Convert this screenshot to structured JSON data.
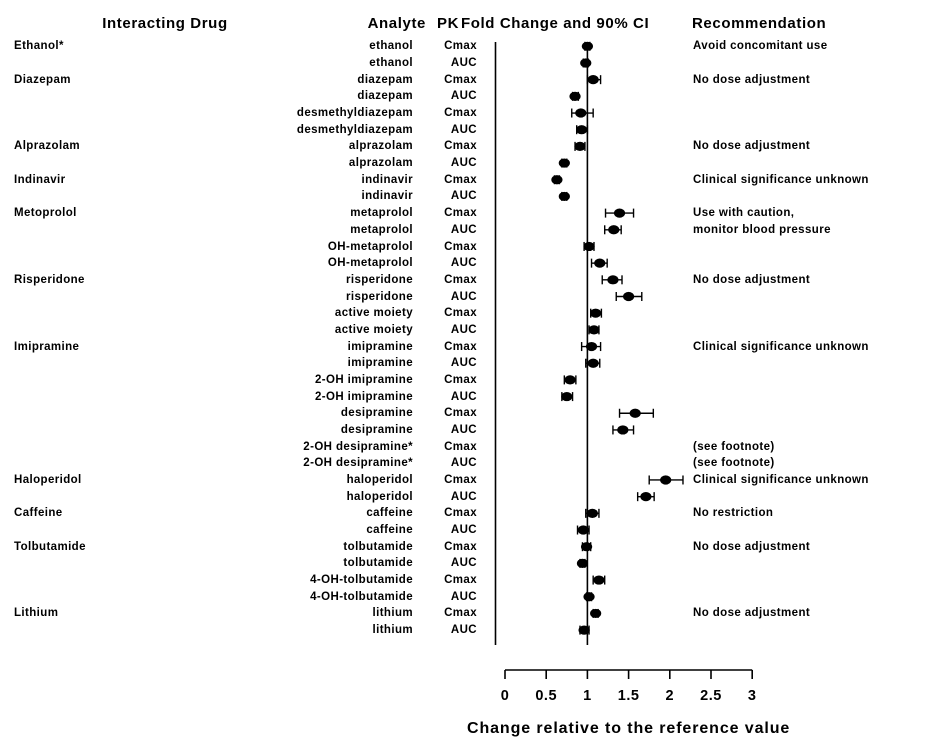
{
  "headers": {
    "interacting_drug": "Interacting Drug",
    "analyte": "Analyte",
    "pk": "PK",
    "fold_change": "Fold Change and 90% CI",
    "recommendation": "Recommendation"
  },
  "colors": {
    "marker": "#000000",
    "line": "#000000",
    "text": "#000000",
    "background": "#ffffff"
  },
  "chart_data": {
    "type": "scatter",
    "subtype": "forest-plot",
    "xlabel": "Change relative to the reference value",
    "x_ticks": [
      "0",
      "0.5",
      "1",
      "1.5",
      "2",
      "2.5",
      "3"
    ],
    "x_tick_values": [
      0,
      0.5,
      1,
      1.5,
      2,
      2.5,
      3
    ],
    "xlim": [
      0,
      3
    ],
    "reference_line": 1,
    "legend_position": "none",
    "grid": false,
    "rows": [
      {
        "drug": "Ethanol*",
        "analyte": "ethanol",
        "pk": "Cmax",
        "est": 1.0,
        "lo": 0.97,
        "hi": 1.03,
        "rec": "Avoid concomitant use"
      },
      {
        "drug": "",
        "analyte": "ethanol",
        "pk": "AUC",
        "est": 0.98,
        "lo": 0.95,
        "hi": 1.01,
        "rec": ""
      },
      {
        "drug": "Diazepam",
        "analyte": "diazepam",
        "pk": "Cmax",
        "est": 1.07,
        "lo": 1.0,
        "hi": 1.16,
        "rec": "No dose adjustment"
      },
      {
        "drug": "",
        "analyte": "diazepam",
        "pk": "AUC",
        "est": 0.85,
        "lo": 0.82,
        "hi": 0.89,
        "rec": ""
      },
      {
        "drug": "",
        "analyte": "desmethyldiazepam",
        "pk": "Cmax",
        "est": 0.92,
        "lo": 0.81,
        "hi": 1.07,
        "rec": ""
      },
      {
        "drug": "",
        "analyte": "desmethyldiazepam",
        "pk": "AUC",
        "est": 0.93,
        "lo": 0.87,
        "hi": 1.0,
        "rec": ""
      },
      {
        "drug": "Alprazolam",
        "analyte": "alprazolam",
        "pk": "Cmax",
        "est": 0.91,
        "lo": 0.85,
        "hi": 0.97,
        "rec": "No dose adjustment"
      },
      {
        "drug": "",
        "analyte": "alprazolam",
        "pk": "AUC",
        "est": 0.72,
        "lo": 0.69,
        "hi": 0.75,
        "rec": ""
      },
      {
        "drug": "Indinavir",
        "analyte": "indinavir",
        "pk": "Cmax",
        "est": 0.63,
        "lo": 0.6,
        "hi": 0.66,
        "rec": "Clinical significance unknown"
      },
      {
        "drug": "",
        "analyte": "indinavir",
        "pk": "AUC",
        "est": 0.72,
        "lo": 0.69,
        "hi": 0.75,
        "rec": ""
      },
      {
        "drug": "Metoprolol",
        "analyte": "metaprolol",
        "pk": "Cmax",
        "est": 1.39,
        "lo": 1.22,
        "hi": 1.56,
        "rec": "Use with caution,"
      },
      {
        "drug": "",
        "analyte": "metaprolol",
        "pk": "AUC",
        "est": 1.32,
        "lo": 1.21,
        "hi": 1.41,
        "rec": "monitor blood pressure"
      },
      {
        "drug": "",
        "analyte": "OH-metaprolol",
        "pk": "Cmax",
        "est": 1.02,
        "lo": 0.96,
        "hi": 1.08,
        "rec": ""
      },
      {
        "drug": "",
        "analyte": "OH-metaprolol",
        "pk": "AUC",
        "est": 1.15,
        "lo": 1.05,
        "hi": 1.24,
        "rec": ""
      },
      {
        "drug": "Risperidone",
        "analyte": "risperidone",
        "pk": "Cmax",
        "est": 1.31,
        "lo": 1.18,
        "hi": 1.42,
        "rec": "No dose adjustment"
      },
      {
        "drug": "",
        "analyte": "risperidone",
        "pk": "AUC",
        "est": 1.5,
        "lo": 1.35,
        "hi": 1.66,
        "rec": ""
      },
      {
        "drug": "",
        "analyte": "active moiety",
        "pk": "Cmax",
        "est": 1.1,
        "lo": 1.04,
        "hi": 1.17,
        "rec": ""
      },
      {
        "drug": "",
        "analyte": "active moiety",
        "pk": "AUC",
        "est": 1.08,
        "lo": 1.02,
        "hi": 1.14,
        "rec": ""
      },
      {
        "drug": "Imipramine",
        "analyte": "imipramine",
        "pk": "Cmax",
        "est": 1.05,
        "lo": 0.93,
        "hi": 1.16,
        "rec": "Clinical significance unknown"
      },
      {
        "drug": "",
        "analyte": "imipramine",
        "pk": "AUC",
        "est": 1.07,
        "lo": 0.98,
        "hi": 1.15,
        "rec": ""
      },
      {
        "drug": "",
        "analyte": "2-OH imipramine",
        "pk": "Cmax",
        "est": 0.79,
        "lo": 0.72,
        "hi": 0.86,
        "rec": ""
      },
      {
        "drug": "",
        "analyte": "2-OH imipramine",
        "pk": "AUC",
        "est": 0.75,
        "lo": 0.69,
        "hi": 0.82,
        "rec": ""
      },
      {
        "drug": "",
        "analyte": "desipramine",
        "pk": "Cmax",
        "est": 1.58,
        "lo": 1.39,
        "hi": 1.8,
        "rec": ""
      },
      {
        "drug": "",
        "analyte": "desipramine",
        "pk": "AUC",
        "est": 1.43,
        "lo": 1.31,
        "hi": 1.56,
        "rec": ""
      },
      {
        "drug": "",
        "analyte": "2-OH desipramine*",
        "pk": "Cmax",
        "est": null,
        "lo": null,
        "hi": null,
        "rec": "(see footnote)"
      },
      {
        "drug": "",
        "analyte": "2-OH desipramine*",
        "pk": "AUC",
        "est": null,
        "lo": null,
        "hi": null,
        "rec": "(see footnote)"
      },
      {
        "drug": "Haloperidol",
        "analyte": "haloperidol",
        "pk": "Cmax",
        "est": 1.95,
        "lo": 1.75,
        "hi": 2.16,
        "rec": "Clinical significance unknown"
      },
      {
        "drug": "",
        "analyte": "haloperidol",
        "pk": "AUC",
        "est": 1.71,
        "lo": 1.61,
        "hi": 1.81,
        "rec": ""
      },
      {
        "drug": "Caffeine",
        "analyte": "caffeine",
        "pk": "Cmax",
        "est": 1.06,
        "lo": 0.98,
        "hi": 1.14,
        "rec": "No restriction"
      },
      {
        "drug": "",
        "analyte": "caffeine",
        "pk": "AUC",
        "est": 0.95,
        "lo": 0.88,
        "hi": 1.02,
        "rec": ""
      },
      {
        "drug": "Tolbutamide",
        "analyte": "tolbutamide",
        "pk": "Cmax",
        "est": 0.99,
        "lo": 0.94,
        "hi": 1.04,
        "rec": "No dose adjustment"
      },
      {
        "drug": "",
        "analyte": "tolbutamide",
        "pk": "AUC",
        "est": 0.94,
        "lo": 0.91,
        "hi": 0.97,
        "rec": ""
      },
      {
        "drug": "",
        "analyte": "4-OH-tolbutamide",
        "pk": "Cmax",
        "est": 1.14,
        "lo": 1.07,
        "hi": 1.21,
        "rec": ""
      },
      {
        "drug": "",
        "analyte": "4-OH-tolbutamide",
        "pk": "AUC",
        "est": 1.02,
        "lo": 0.99,
        "hi": 1.05,
        "rec": ""
      },
      {
        "drug": "Lithium",
        "analyte": "lithium",
        "pk": "Cmax",
        "est": 1.1,
        "lo": 1.07,
        "hi": 1.13,
        "rec": "No dose adjustment"
      },
      {
        "drug": "",
        "analyte": "lithium",
        "pk": "AUC",
        "est": 0.96,
        "lo": 0.91,
        "hi": 1.02,
        "rec": ""
      }
    ]
  }
}
